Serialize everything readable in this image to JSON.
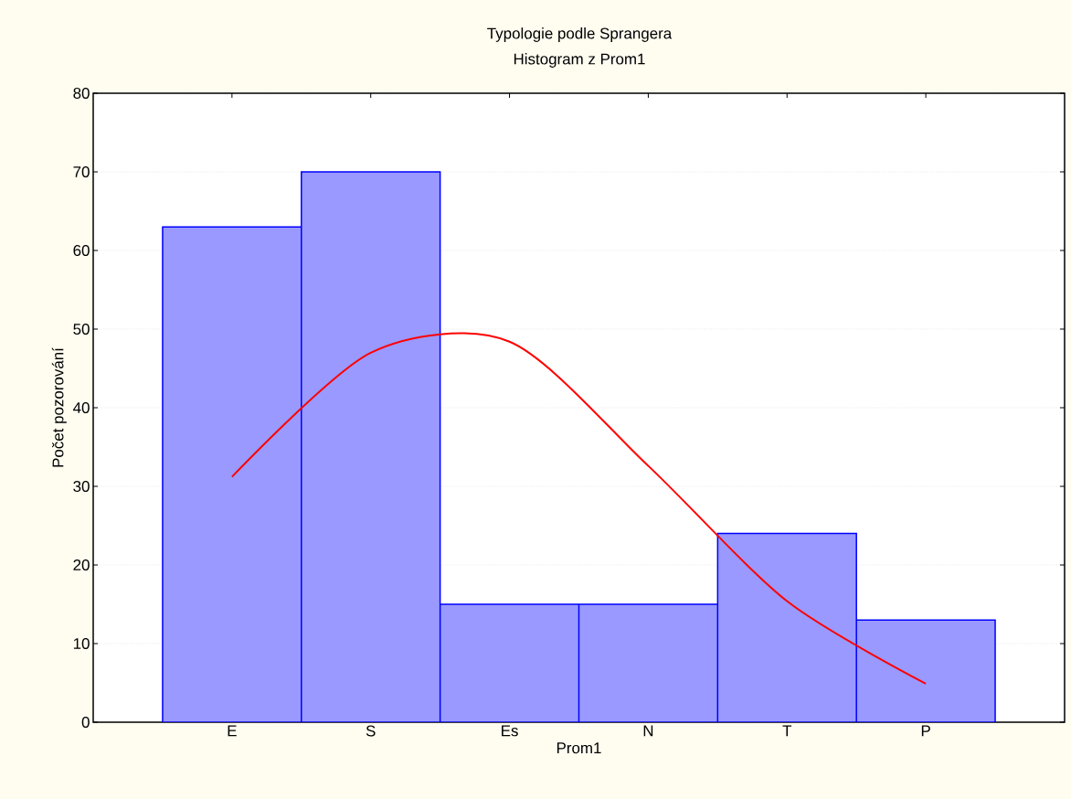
{
  "chart_data": {
    "type": "bar",
    "title": "Typologie podle Sprangera",
    "subtitle": "Histogram z Prom1",
    "xlabel": "Prom1",
    "ylabel": "Počet pozorování",
    "categories": [
      "E",
      "S",
      "Es",
      "N",
      "T",
      "P"
    ],
    "values": [
      63,
      70,
      15,
      15,
      24,
      13
    ],
    "color": "#9999ff",
    "series": [
      {
        "type": "line",
        "color": "#ff0000",
        "values": [
          31.2,
          47.0,
          48.4,
          32.6,
          15.4,
          4.9
        ]
      }
    ],
    "ylim": [
      0,
      80
    ],
    "yticks": [
      0,
      10,
      20,
      30,
      40,
      50,
      60,
      70,
      80
    ],
    "grid": "y"
  }
}
